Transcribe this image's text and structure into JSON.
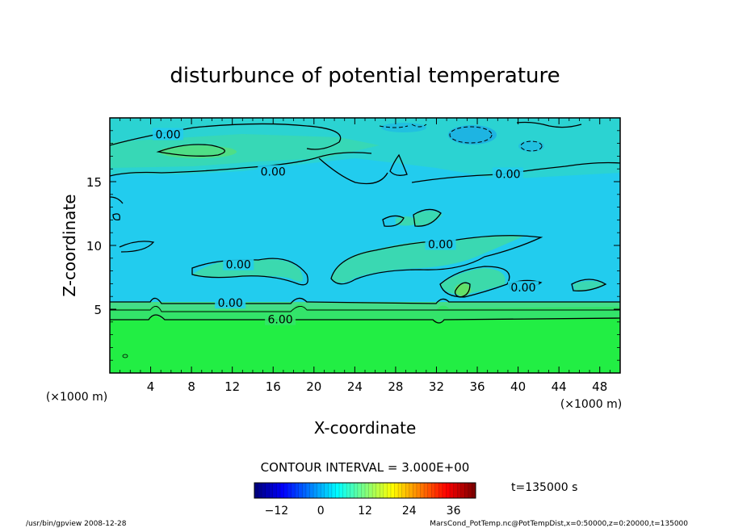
{
  "chart_data": {
    "type": "heatmap",
    "title": "disturbunce of potential temperature",
    "xlabel": "X-coordinate",
    "ylabel": "Z-coordinate",
    "x_unit_left": "(×1000 m)",
    "x_unit_right": "(×1000 m)",
    "xlim": [
      0,
      50
    ],
    "ylim": [
      0,
      20
    ],
    "x_ticks": [
      4,
      8,
      12,
      16,
      20,
      24,
      28,
      32,
      36,
      40,
      44,
      48
    ],
    "x_tick_labels": [
      "4",
      "8",
      "12",
      "16",
      "20",
      "24",
      "28",
      "32",
      "36",
      "40",
      "44",
      "48"
    ],
    "y_ticks": [
      5,
      10,
      15
    ],
    "y_tick_labels": [
      "5",
      "10",
      "15"
    ],
    "contour_labels": [
      {
        "text": "0.00",
        "x": 5.7,
        "z": 18.7
      },
      {
        "text": "0.00",
        "x": 16.0,
        "z": 15.8
      },
      {
        "text": "0.00",
        "x": 39.0,
        "z": 15.6
      },
      {
        "text": "0.00",
        "x": 12.6,
        "z": 8.5
      },
      {
        "text": "0.00",
        "x": 32.4,
        "z": 10.1
      },
      {
        "text": "0.00",
        "x": 40.5,
        "z": 6.7
      },
      {
        "text": "0.00",
        "x": 11.8,
        "z": 5.5
      },
      {
        "text": "6.00",
        "x": 16.7,
        "z": 4.2
      }
    ],
    "contour_interval_label": "CONTOUR INTERVAL = 3.000E+00",
    "time_label": "t=135000 s",
    "colorbar": {
      "min": -18,
      "max": 42,
      "ticks": [
        -12,
        0,
        12,
        24,
        36
      ],
      "tick_labels": [
        "−12",
        "0",
        "12",
        "24",
        "36"
      ]
    },
    "colors": {
      "surface_layer": "#22ee44",
      "mid_layer": "#44dd88",
      "background": "#22ccee",
      "anomaly_patch": "#55dd99"
    }
  },
  "footer": {
    "left": "/usr/bin/gpview   2008-12-28",
    "right": "MarsCond_PotTemp.nc@PotTempDist,x=0:50000,z=0:20000,t=135000"
  }
}
